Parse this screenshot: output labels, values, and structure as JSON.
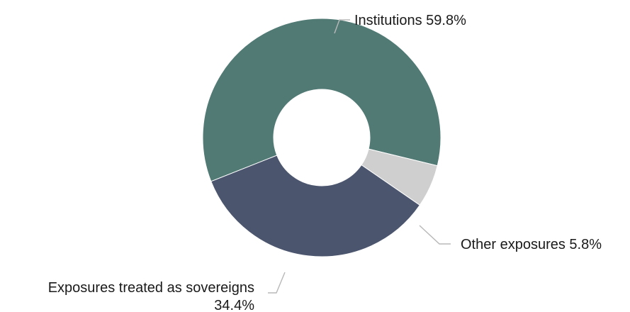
{
  "chart_data": {
    "type": "pie",
    "variant": "donut",
    "slices": [
      {
        "name": "Institutions",
        "value": 59.8,
        "label": "Institutions 59.8%",
        "color": "#517a75"
      },
      {
        "name": "Other exposures",
        "value": 5.8,
        "label": "Other exposures 5.8%",
        "color": "#cfcfcf"
      },
      {
        "name": "Exposures treated as sovereigns",
        "value": 34.4,
        "label_lines": [
          "Exposures treated as sovereigns",
          "34.4%"
        ],
        "color": "#4b556e"
      }
    ],
    "legend": "none",
    "unit": "%"
  }
}
